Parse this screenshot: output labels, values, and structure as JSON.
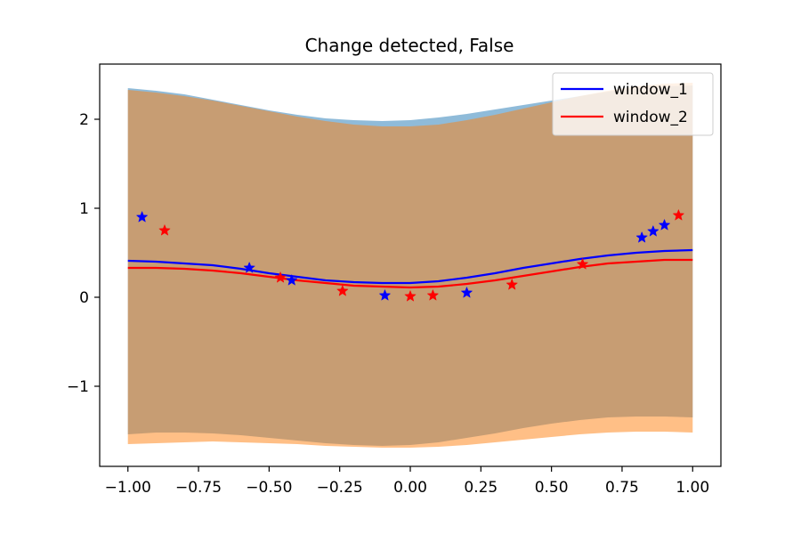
{
  "chart_data": {
    "type": "line",
    "title": "Change detected, False",
    "xlabel": "",
    "ylabel": "",
    "xlim": [
      -1.1,
      1.1
    ],
    "ylim": [
      -1.9,
      2.62
    ],
    "xticks": [
      -1.0,
      -0.75,
      -0.5,
      -0.25,
      0.0,
      0.25,
      0.5,
      0.75,
      1.0
    ],
    "xtick_labels": [
      "−1.00",
      "−0.75",
      "−0.50",
      "−0.25",
      "0.00",
      "0.25",
      "0.50",
      "0.75",
      "1.00"
    ],
    "yticks": [
      -1,
      0,
      1,
      2
    ],
    "ytick_labels": [
      "−1",
      "0",
      "1",
      "2"
    ],
    "grid": false,
    "legend_position": "top-right",
    "series": [
      {
        "name": "window_1",
        "color": "#0000ff",
        "band_color": "#1f77b4",
        "mean": [
          [
            -1.0,
            0.41
          ],
          [
            -0.9,
            0.4
          ],
          [
            -0.8,
            0.38
          ],
          [
            -0.7,
            0.36
          ],
          [
            -0.6,
            0.32
          ],
          [
            -0.5,
            0.27
          ],
          [
            -0.4,
            0.23
          ],
          [
            -0.3,
            0.19
          ],
          [
            -0.2,
            0.17
          ],
          [
            -0.1,
            0.16
          ],
          [
            0.0,
            0.16
          ],
          [
            0.1,
            0.18
          ],
          [
            0.2,
            0.22
          ],
          [
            0.3,
            0.27
          ],
          [
            0.4,
            0.33
          ],
          [
            0.5,
            0.38
          ],
          [
            0.6,
            0.43
          ],
          [
            0.7,
            0.47
          ],
          [
            0.8,
            0.5
          ],
          [
            0.9,
            0.52
          ],
          [
            1.0,
            0.53
          ]
        ],
        "upper": [
          [
            -1.0,
            2.35
          ],
          [
            -0.9,
            2.32
          ],
          [
            -0.8,
            2.28
          ],
          [
            -0.7,
            2.22
          ],
          [
            -0.6,
            2.16
          ],
          [
            -0.5,
            2.1
          ],
          [
            -0.4,
            2.05
          ],
          [
            -0.3,
            2.01
          ],
          [
            -0.2,
            1.99
          ],
          [
            -0.1,
            1.98
          ],
          [
            0.0,
            1.99
          ],
          [
            0.1,
            2.02
          ],
          [
            0.2,
            2.06
          ],
          [
            0.3,
            2.11
          ],
          [
            0.4,
            2.16
          ],
          [
            0.5,
            2.21
          ],
          [
            0.6,
            2.26
          ],
          [
            0.7,
            2.31
          ],
          [
            0.8,
            2.35
          ],
          [
            0.9,
            2.37
          ],
          [
            1.0,
            2.38
          ]
        ],
        "lower": [
          [
            -1.0,
            -1.54
          ],
          [
            -0.9,
            -1.52
          ],
          [
            -0.8,
            -1.52
          ],
          [
            -0.7,
            -1.53
          ],
          [
            -0.6,
            -1.55
          ],
          [
            -0.5,
            -1.58
          ],
          [
            -0.4,
            -1.61
          ],
          [
            -0.3,
            -1.64
          ],
          [
            -0.2,
            -1.66
          ],
          [
            -0.1,
            -1.67
          ],
          [
            0.0,
            -1.66
          ],
          [
            0.1,
            -1.63
          ],
          [
            0.2,
            -1.58
          ],
          [
            0.3,
            -1.53
          ],
          [
            0.4,
            -1.47
          ],
          [
            0.5,
            -1.42
          ],
          [
            0.6,
            -1.38
          ],
          [
            0.7,
            -1.35
          ],
          [
            0.8,
            -1.34
          ],
          [
            0.9,
            -1.34
          ],
          [
            1.0,
            -1.35
          ]
        ],
        "points": [
          [
            -0.95,
            0.9
          ],
          [
            -0.57,
            0.33
          ],
          [
            -0.42,
            0.19
          ],
          [
            -0.09,
            0.02
          ],
          [
            0.2,
            0.05
          ],
          [
            0.82,
            0.67
          ],
          [
            0.86,
            0.74
          ],
          [
            0.9,
            0.81
          ]
        ]
      },
      {
        "name": "window_2",
        "color": "#ff0000",
        "band_color": "#ff7f0e",
        "mean": [
          [
            -1.0,
            0.33
          ],
          [
            -0.9,
            0.33
          ],
          [
            -0.8,
            0.32
          ],
          [
            -0.7,
            0.3
          ],
          [
            -0.6,
            0.27
          ],
          [
            -0.5,
            0.23
          ],
          [
            -0.4,
            0.19
          ],
          [
            -0.3,
            0.16
          ],
          [
            -0.2,
            0.13
          ],
          [
            -0.1,
            0.12
          ],
          [
            0.0,
            0.11
          ],
          [
            0.1,
            0.12
          ],
          [
            0.2,
            0.15
          ],
          [
            0.3,
            0.19
          ],
          [
            0.4,
            0.24
          ],
          [
            0.5,
            0.29
          ],
          [
            0.6,
            0.34
          ],
          [
            0.7,
            0.38
          ],
          [
            0.8,
            0.4
          ],
          [
            0.9,
            0.42
          ],
          [
            1.0,
            0.42
          ]
        ],
        "upper": [
          [
            -1.0,
            2.33
          ],
          [
            -0.9,
            2.3
          ],
          [
            -0.8,
            2.26
          ],
          [
            -0.7,
            2.21
          ],
          [
            -0.6,
            2.15
          ],
          [
            -0.5,
            2.09
          ],
          [
            -0.4,
            2.03
          ],
          [
            -0.3,
            1.98
          ],
          [
            -0.2,
            1.94
          ],
          [
            -0.1,
            1.92
          ],
          [
            0.0,
            1.92
          ],
          [
            0.1,
            1.94
          ],
          [
            0.2,
            1.99
          ],
          [
            0.3,
            2.05
          ],
          [
            0.4,
            2.12
          ],
          [
            0.5,
            2.19
          ],
          [
            0.6,
            2.26
          ],
          [
            0.7,
            2.32
          ],
          [
            0.8,
            2.37
          ],
          [
            0.9,
            2.4
          ],
          [
            1.0,
            2.41
          ]
        ],
        "lower": [
          [
            -1.0,
            -1.65
          ],
          [
            -0.9,
            -1.64
          ],
          [
            -0.8,
            -1.63
          ],
          [
            -0.7,
            -1.62
          ],
          [
            -0.6,
            -1.63
          ],
          [
            -0.5,
            -1.64
          ],
          [
            -0.4,
            -1.65
          ],
          [
            -0.3,
            -1.67
          ],
          [
            -0.2,
            -1.68
          ],
          [
            -0.1,
            -1.69
          ],
          [
            0.0,
            -1.69
          ],
          [
            0.1,
            -1.68
          ],
          [
            0.2,
            -1.66
          ],
          [
            0.3,
            -1.63
          ],
          [
            0.4,
            -1.6
          ],
          [
            0.5,
            -1.57
          ],
          [
            0.6,
            -1.54
          ],
          [
            0.7,
            -1.52
          ],
          [
            0.8,
            -1.51
          ],
          [
            0.9,
            -1.51
          ],
          [
            1.0,
            -1.52
          ]
        ],
        "points": [
          [
            -0.87,
            0.75
          ],
          [
            -0.46,
            0.22
          ],
          [
            -0.24,
            0.07
          ],
          [
            0.0,
            0.01
          ],
          [
            0.08,
            0.02
          ],
          [
            0.36,
            0.14
          ],
          [
            0.61,
            0.37
          ],
          [
            0.95,
            0.92
          ]
        ]
      }
    ]
  }
}
